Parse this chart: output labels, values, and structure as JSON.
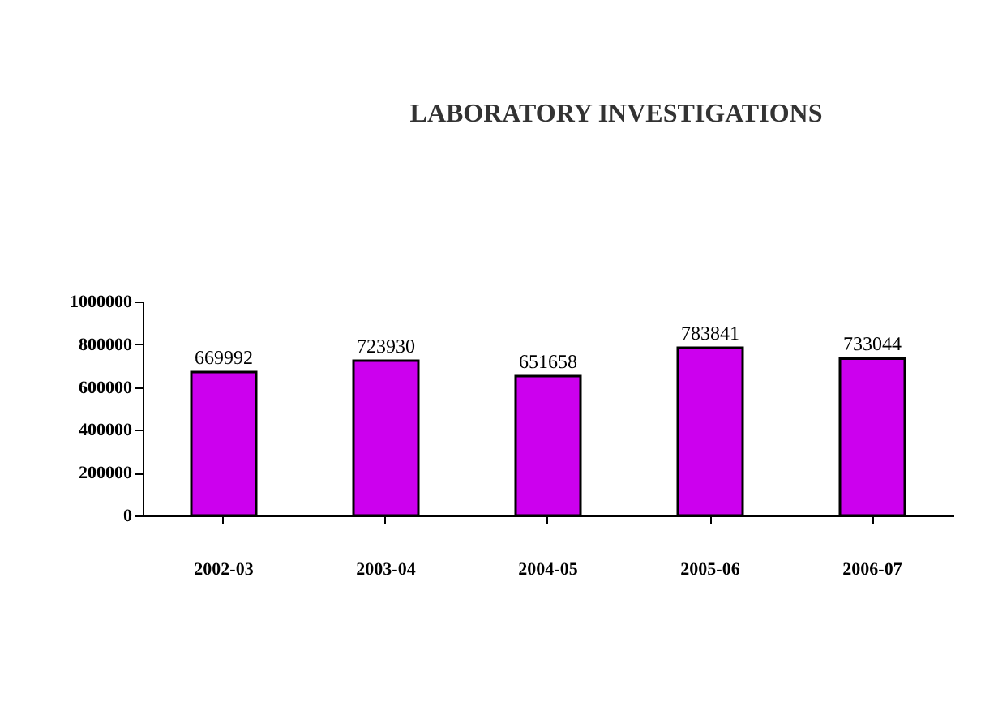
{
  "chart_data": {
    "type": "bar",
    "title": "LABORATORY INVESTIGATIONS",
    "categories": [
      "2002-03",
      "2003-04",
      "2004-05",
      "2005-06",
      "2006-07"
    ],
    "values": [
      669992,
      723930,
      651658,
      783841,
      733044
    ],
    "color": "#cc00ee",
    "data_labels": true,
    "ylim": [
      0,
      1000000
    ],
    "yticks": [
      0,
      200000,
      400000,
      600000,
      800000,
      1000000
    ],
    "grid": false
  }
}
